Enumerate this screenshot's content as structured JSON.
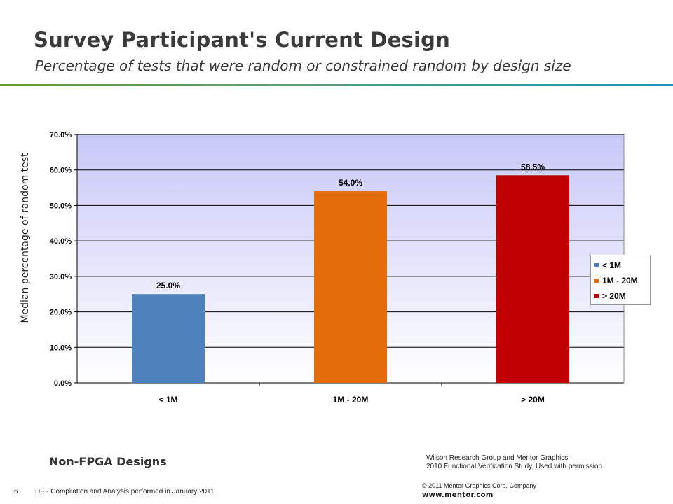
{
  "slide": {
    "title": "Survey Participant's Current Design",
    "subtitle": "Percentage of tests that were random or constrained random by design size",
    "page_number": "6",
    "footnote": "HF - Compilation and Analysis performed in January 2011",
    "design_category": "Non-FPGA Designs",
    "source_line1": "Wilson Research Group and Mentor Graphics",
    "source_line2": "2010 Functional Verification Study,  Used with permission",
    "copyright": "© 2011 Mentor Graphics Corp. Company",
    "website": "www.mentor.com"
  },
  "chart_data": {
    "type": "bar",
    "title": "",
    "xlabel": "",
    "ylabel": "Median percentage of random test",
    "categories": [
      "< 1M",
      "1M - 20M",
      "> 20M"
    ],
    "values": [
      25.0,
      54.0,
      58.5
    ],
    "data_labels": [
      "25.0%",
      "54.0%",
      "58.5%"
    ],
    "colors": [
      "#4f81bd",
      "#e36c0a",
      "#c00000"
    ],
    "ylim": [
      0,
      70
    ],
    "yticks": [
      "0.0%",
      "10.0%",
      "20.0%",
      "30.0%",
      "40.0%",
      "50.0%",
      "60.0%",
      "70.0%"
    ],
    "grid": true,
    "legend": {
      "position": "right",
      "entries": [
        "< 1M",
        "1M - 20M",
        "> 20M"
      ]
    }
  }
}
